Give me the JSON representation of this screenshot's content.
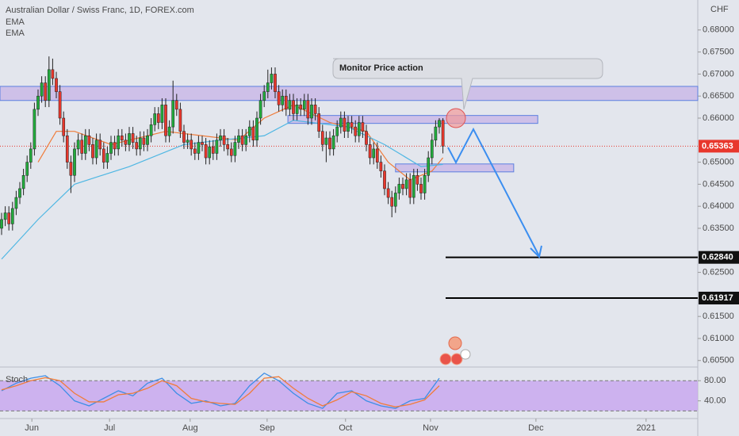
{
  "header": {
    "title": "Australian Dollar / Swiss Franc, 1D, FOREX.com",
    "indicators": [
      "EMA",
      "EMA"
    ],
    "currency": "CHF"
  },
  "annotation": "Monitor Price action",
  "chart_data": {
    "type": "candlestick",
    "up_color": "#22ab3c",
    "down_color": "#e8372c",
    "ylim": [
      0.6037,
      0.6868
    ],
    "yticks": [
      {
        "value": 0.68,
        "label": "0.68000"
      },
      {
        "value": 0.675,
        "label": "0.67500"
      },
      {
        "value": 0.67,
        "label": "0.67000"
      },
      {
        "value": 0.665,
        "label": "0.66500"
      },
      {
        "value": 0.66,
        "label": "0.66000"
      },
      {
        "value": 0.65,
        "label": "0.65000"
      },
      {
        "value": 0.645,
        "label": "0.64500"
      },
      {
        "value": 0.64,
        "label": "0.64000"
      },
      {
        "value": 0.635,
        "label": "0.63500"
      },
      {
        "value": 0.625,
        "label": "0.62500"
      },
      {
        "value": 0.615,
        "label": "0.61500"
      },
      {
        "value": 0.61,
        "label": "0.61000"
      },
      {
        "value": 0.605,
        "label": "0.60500"
      }
    ],
    "xticks": [
      {
        "value": 8.3,
        "label": "Jun"
      },
      {
        "value": 29.6,
        "label": "Jul"
      },
      {
        "value": 51.7,
        "label": "Aug"
      },
      {
        "value": 72.8,
        "label": "Sep"
      },
      {
        "value": 94.3,
        "label": "Oct"
      },
      {
        "value": 117.6,
        "label": "Nov"
      },
      {
        "value": 146.5,
        "label": "Dec"
      },
      {
        "value": 176.7,
        "label": "2021"
      }
    ],
    "ohlc": [
      [
        0.635,
        0.6385,
        0.6335,
        0.637
      ],
      [
        0.637,
        0.64,
        0.6355,
        0.6385
      ],
      [
        0.6385,
        0.64,
        0.6345,
        0.636
      ],
      [
        0.636,
        0.641,
        0.6345,
        0.6395
      ],
      [
        0.6395,
        0.6435,
        0.638,
        0.642
      ],
      [
        0.642,
        0.6455,
        0.6405,
        0.644
      ],
      [
        0.644,
        0.6485,
        0.6425,
        0.647
      ],
      [
        0.647,
        0.6515,
        0.6455,
        0.65
      ],
      [
        0.65,
        0.6545,
        0.6485,
        0.653
      ],
      [
        0.653,
        0.6635,
        0.6515,
        0.662
      ],
      [
        0.662,
        0.6665,
        0.6605,
        0.665
      ],
      [
        0.665,
        0.6695,
        0.6635,
        0.668
      ],
      [
        0.668,
        0.6695,
        0.6625,
        0.664
      ],
      [
        0.664,
        0.674,
        0.6625,
        0.671
      ],
      [
        0.671,
        0.6735,
        0.6675,
        0.669
      ],
      [
        0.669,
        0.6705,
        0.6645,
        0.666
      ],
      [
        0.666,
        0.6675,
        0.6585,
        0.66
      ],
      [
        0.66,
        0.6615,
        0.6545,
        0.656
      ],
      [
        0.656,
        0.6575,
        0.6485,
        0.65
      ],
      [
        0.65,
        0.6515,
        0.643,
        0.647
      ],
      [
        0.647,
        0.6545,
        0.6455,
        0.653
      ],
      [
        0.653,
        0.6565,
        0.6515,
        0.655
      ],
      [
        0.655,
        0.6565,
        0.6505,
        0.652
      ],
      [
        0.652,
        0.6575,
        0.6505,
        0.656
      ],
      [
        0.656,
        0.6575,
        0.6525,
        0.654
      ],
      [
        0.654,
        0.6555,
        0.6495,
        0.651
      ],
      [
        0.651,
        0.6565,
        0.6495,
        0.655
      ],
      [
        0.655,
        0.6565,
        0.6515,
        0.653
      ],
      [
        0.653,
        0.6545,
        0.6485,
        0.65
      ],
      [
        0.65,
        0.6535,
        0.6485,
        0.652
      ],
      [
        0.652,
        0.656,
        0.6505,
        0.6545
      ],
      [
        0.6545,
        0.656,
        0.6515,
        0.653
      ],
      [
        0.653,
        0.6575,
        0.6515,
        0.656
      ],
      [
        0.656,
        0.6575,
        0.6535,
        0.655
      ],
      [
        0.655,
        0.6565,
        0.6525,
        0.654
      ],
      [
        0.654,
        0.658,
        0.6525,
        0.6565
      ],
      [
        0.6565,
        0.658,
        0.653,
        0.6545
      ],
      [
        0.6545,
        0.656,
        0.6515,
        0.653
      ],
      [
        0.653,
        0.657,
        0.6515,
        0.6555
      ],
      [
        0.6555,
        0.657,
        0.6525,
        0.654
      ],
      [
        0.654,
        0.6575,
        0.6525,
        0.656
      ],
      [
        0.656,
        0.66,
        0.6545,
        0.6585
      ],
      [
        0.6585,
        0.6625,
        0.657,
        0.661
      ],
      [
        0.661,
        0.6625,
        0.6575,
        0.659
      ],
      [
        0.659,
        0.6645,
        0.6575,
        0.663
      ],
      [
        0.663,
        0.6645,
        0.6545,
        0.656
      ],
      [
        0.656,
        0.6595,
        0.6545,
        0.658
      ],
      [
        0.658,
        0.6685,
        0.6565,
        0.664
      ],
      [
        0.664,
        0.6655,
        0.6605,
        0.662
      ],
      [
        0.662,
        0.6635,
        0.6555,
        0.657
      ],
      [
        0.657,
        0.6585,
        0.653,
        0.6545
      ],
      [
        0.6545,
        0.6565,
        0.653,
        0.655
      ],
      [
        0.655,
        0.6565,
        0.6515,
        0.653
      ],
      [
        0.653,
        0.6545,
        0.6505,
        0.652
      ],
      [
        0.652,
        0.656,
        0.6505,
        0.6545
      ],
      [
        0.6545,
        0.656,
        0.6525,
        0.654
      ],
      [
        0.654,
        0.6555,
        0.6495,
        0.651
      ],
      [
        0.651,
        0.655,
        0.6495,
        0.6535
      ],
      [
        0.6535,
        0.655,
        0.6505,
        0.652
      ],
      [
        0.652,
        0.6565,
        0.6505,
        0.655
      ],
      [
        0.655,
        0.6575,
        0.6535,
        0.656
      ],
      [
        0.656,
        0.6575,
        0.6525,
        0.654
      ],
      [
        0.654,
        0.6555,
        0.6515,
        0.653
      ],
      [
        0.653,
        0.6545,
        0.65,
        0.6515
      ],
      [
        0.6515,
        0.656,
        0.65,
        0.6545
      ],
      [
        0.6545,
        0.6575,
        0.653,
        0.656
      ],
      [
        0.656,
        0.6575,
        0.6525,
        0.654
      ],
      [
        0.654,
        0.6575,
        0.6525,
        0.656
      ],
      [
        0.656,
        0.6595,
        0.6545,
        0.658
      ],
      [
        0.658,
        0.6595,
        0.6535,
        0.655
      ],
      [
        0.655,
        0.6615,
        0.6535,
        0.66
      ],
      [
        0.66,
        0.6655,
        0.6585,
        0.664
      ],
      [
        0.664,
        0.6675,
        0.6625,
        0.666
      ],
      [
        0.666,
        0.671,
        0.6645,
        0.668
      ],
      [
        0.668,
        0.6715,
        0.6665,
        0.67
      ],
      [
        0.67,
        0.6715,
        0.6645,
        0.666
      ],
      [
        0.666,
        0.6675,
        0.6615,
        0.663
      ],
      [
        0.663,
        0.6665,
        0.6615,
        0.665
      ],
      [
        0.665,
        0.6665,
        0.6605,
        0.662
      ],
      [
        0.662,
        0.6655,
        0.6605,
        0.664
      ],
      [
        0.664,
        0.6655,
        0.6595,
        0.661
      ],
      [
        0.661,
        0.6645,
        0.6595,
        0.663
      ],
      [
        0.663,
        0.6645,
        0.6605,
        0.662
      ],
      [
        0.662,
        0.6655,
        0.6605,
        0.664
      ],
      [
        0.664,
        0.6655,
        0.6585,
        0.66
      ],
      [
        0.66,
        0.6645,
        0.6585,
        0.663
      ],
      [
        0.663,
        0.6645,
        0.6595,
        0.661
      ],
      [
        0.661,
        0.6625,
        0.6555,
        0.657
      ],
      [
        0.657,
        0.6585,
        0.6525,
        0.654
      ],
      [
        0.654,
        0.657,
        0.65,
        0.6555
      ],
      [
        0.6555,
        0.657,
        0.6515,
        0.653
      ],
      [
        0.653,
        0.6575,
        0.6515,
        0.656
      ],
      [
        0.656,
        0.6595,
        0.6545,
        0.658
      ],
      [
        0.658,
        0.6615,
        0.6565,
        0.66
      ],
      [
        0.66,
        0.6615,
        0.6555,
        0.657
      ],
      [
        0.657,
        0.6605,
        0.6555,
        0.659
      ],
      [
        0.659,
        0.6605,
        0.6565,
        0.658
      ],
      [
        0.658,
        0.6595,
        0.6545,
        0.656
      ],
      [
        0.656,
        0.6605,
        0.6545,
        0.659
      ],
      [
        0.659,
        0.6605,
        0.6555,
        0.657
      ],
      [
        0.657,
        0.6585,
        0.6525,
        0.654
      ],
      [
        0.654,
        0.6555,
        0.6495,
        0.651
      ],
      [
        0.651,
        0.6545,
        0.6495,
        0.653
      ],
      [
        0.653,
        0.6545,
        0.6485,
        0.65
      ],
      [
        0.65,
        0.6515,
        0.6465,
        0.648
      ],
      [
        0.648,
        0.6495,
        0.6425,
        0.644
      ],
      [
        0.644,
        0.6455,
        0.6405,
        0.642
      ],
      [
        0.642,
        0.6435,
        0.6375,
        0.64
      ],
      [
        0.64,
        0.6445,
        0.6385,
        0.643
      ],
      [
        0.643,
        0.6465,
        0.6415,
        0.645
      ],
      [
        0.645,
        0.6465,
        0.6425,
        0.644
      ],
      [
        0.644,
        0.6475,
        0.6425,
        0.646
      ],
      [
        0.646,
        0.6475,
        0.6405,
        0.642
      ],
      [
        0.642,
        0.6485,
        0.6405,
        0.647
      ],
      [
        0.647,
        0.6485,
        0.6435,
        0.645
      ],
      [
        0.645,
        0.6465,
        0.6415,
        0.643
      ],
      [
        0.643,
        0.6485,
        0.6415,
        0.647
      ],
      [
        0.647,
        0.6525,
        0.6455,
        0.651
      ],
      [
        0.651,
        0.6565,
        0.6495,
        0.655
      ],
      [
        0.655,
        0.6595,
        0.6535,
        0.658
      ],
      [
        0.658,
        0.66,
        0.6565,
        0.6595
      ],
      [
        0.6595,
        0.66,
        0.652,
        0.65363
      ]
    ],
    "ema": [
      {
        "color": "#f07c3a",
        "x": [
          10,
          15,
          20,
          30,
          45,
          55,
          65,
          72,
          80,
          90,
          100,
          106,
          112,
          118,
          121
        ],
        "values": [
          0.65,
          0.657,
          0.657,
          0.654,
          0.657,
          0.656,
          0.655,
          0.66,
          0.663,
          0.659,
          0.657,
          0.65,
          0.646,
          0.648,
          0.651
        ]
      },
      {
        "color": "#4fb7e3",
        "x": [
          0,
          10,
          20,
          35,
          50,
          60,
          72,
          80,
          95,
          105,
          115,
          121
        ],
        "values": [
          0.628,
          0.637,
          0.645,
          0.649,
          0.654,
          0.655,
          0.656,
          0.6595,
          0.658,
          0.654,
          0.649,
          0.6495
        ]
      }
    ],
    "zones": [
      {
        "low": 0.664,
        "high": 0.6672,
        "start": -1,
        "end": 191
      },
      {
        "low": 0.6588,
        "high": 0.6606,
        "start": 78.5,
        "end": 147
      },
      {
        "low": 0.6478,
        "high": 0.6496,
        "start": 108,
        "end": 140.4
      }
    ],
    "levels": [
      {
        "value": 0.6284,
        "label": "0.62840"
      },
      {
        "value": 0.61917,
        "label": "0.61917"
      }
    ],
    "last_price": {
      "value": 0.65363,
      "label": "0.65363"
    },
    "stoch": {
      "name": "Stoch",
      "ylim": [
        6.4,
        105.6
      ],
      "band": [
        20,
        80
      ],
      "yticks": [
        {
          "value": 80,
          "label": "80.00"
        },
        {
          "value": 40,
          "label": "40.00"
        }
      ],
      "x": [
        0,
        4,
        8,
        12,
        16,
        20,
        24,
        28,
        32,
        36,
        40,
        44,
        48,
        52,
        56,
        60,
        64,
        68,
        72,
        76,
        80,
        84,
        88,
        92,
        96,
        100,
        104,
        108,
        112,
        116,
        120
      ],
      "k": {
        "color": "#3d8ee6",
        "values": [
          60,
          75,
          85,
          90,
          70,
          40,
          30,
          45,
          60,
          50,
          75,
          85,
          55,
          35,
          40,
          30,
          35,
          70,
          95,
          80,
          55,
          35,
          25,
          55,
          60,
          40,
          30,
          25,
          40,
          45,
          85
        ]
      },
      "d": {
        "color": "#f07c3a",
        "values": [
          62,
          70,
          80,
          86,
          80,
          55,
          38,
          38,
          52,
          55,
          65,
          80,
          70,
          45,
          38,
          35,
          33,
          55,
          85,
          88,
          65,
          45,
          30,
          42,
          58,
          50,
          35,
          28,
          33,
          42,
          70
        ]
      }
    }
  }
}
